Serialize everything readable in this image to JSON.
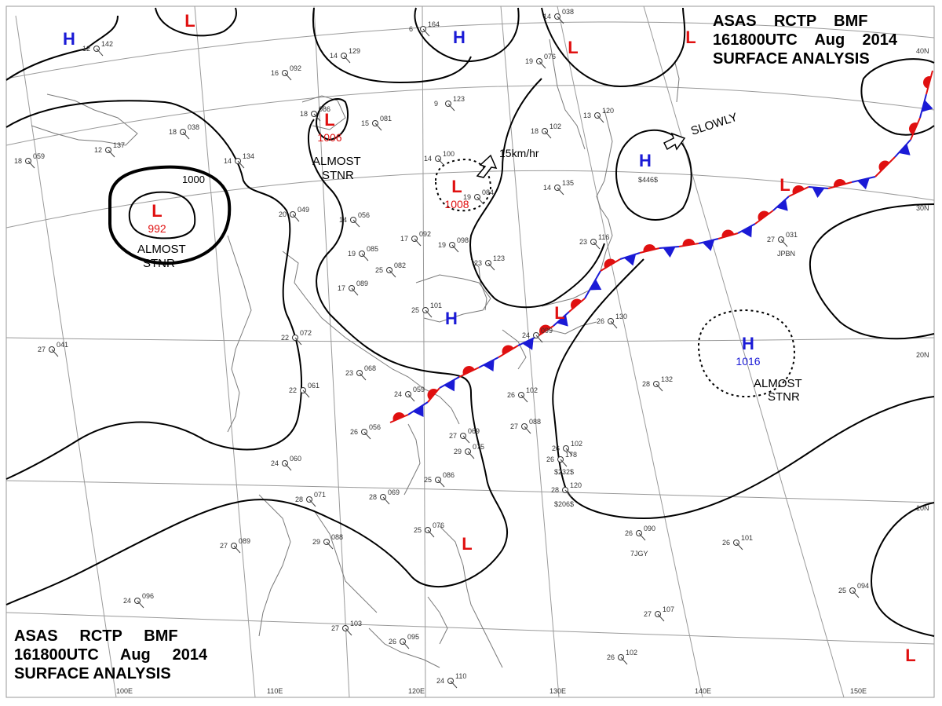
{
  "title": {
    "line1": [
      "ASAS",
      "RCTP",
      "BMF"
    ],
    "line2": [
      "161800UTC",
      "Aug",
      "2014"
    ],
    "line3": "SURFACE ANALYSIS"
  },
  "colors": {
    "high": "#1a1ad6",
    "low": "#e01010",
    "warm_front": "#e01010",
    "cold_front": "#1a1ad6",
    "isobar": "#000000",
    "grid": "#9a9a9a"
  },
  "centers": [
    {
      "type": "H",
      "pressure": ""
    },
    {
      "type": "L",
      "pressure": ""
    },
    {
      "type": "H",
      "pressure": ""
    },
    {
      "type": "L",
      "pressure": ""
    },
    {
      "type": "L",
      "pressure": "1006"
    },
    {
      "type": "L",
      "pressure": "992"
    },
    {
      "type": "L",
      "pressure": "1008"
    },
    {
      "type": "H",
      "pressure": ""
    },
    {
      "type": "L",
      "pressure": ""
    },
    {
      "type": "L",
      "pressure": ""
    },
    {
      "type": "L",
      "pressure": ""
    },
    {
      "type": "H",
      "pressure": ""
    },
    {
      "type": "H",
      "pressure": "1016"
    },
    {
      "type": "L",
      "pressure": ""
    },
    {
      "type": "L",
      "pressure": ""
    }
  ],
  "isobar_labels": [
    "1000"
  ],
  "annotations": {
    "almost_stnr_1": [
      "ALMOST",
      "STNR"
    ],
    "almost_stnr_2": [
      "ALMOST",
      "STNR"
    ],
    "almost_stnr_3": [
      "ALMOST",
      "STNR"
    ],
    "movement_1": "15km/hr",
    "movement_2": "SLOWLY"
  },
  "graticule": {
    "longitudes": [
      "100E",
      "110E",
      "120E",
      "130E",
      "140E",
      "150E"
    ],
    "latitudes": [
      "40N",
      "30N",
      "20N",
      "10N"
    ]
  },
  "stations": [
    {
      "temp": "12",
      "pres": "142"
    },
    {
      "temp": "16",
      "pres": "092"
    },
    {
      "temp": "18",
      "pres": "086"
    },
    {
      "temp": "18",
      "pres": "038"
    },
    {
      "temp": "15",
      "pres": "081"
    },
    {
      "temp": "14",
      "pres": "134"
    },
    {
      "temp": "14",
      "pres": "100"
    },
    {
      "temp": "20",
      "pres": "049"
    },
    {
      "temp": "17",
      "pres": "092"
    },
    {
      "temp": "19",
      "pres": "098"
    },
    {
      "temp": "25",
      "pres": "082"
    },
    {
      "temp": "23",
      "pres": "123"
    },
    {
      "temp": "17",
      "pres": "089"
    },
    {
      "temp": "22",
      "pres": "072"
    },
    {
      "temp": "23",
      "pres": "068"
    },
    {
      "temp": "24",
      "pres": "059"
    },
    {
      "temp": "26",
      "pres": "056"
    },
    {
      "temp": "27",
      "pres": "069"
    },
    {
      "temp": "29",
      "pres": "075"
    },
    {
      "temp": "25",
      "pres": "086"
    },
    {
      "temp": "28",
      "pres": "069"
    },
    {
      "temp": "28",
      "pres": "071"
    },
    {
      "temp": "24",
      "pres": "060"
    },
    {
      "temp": "22",
      "pres": "061"
    },
    {
      "temp": "27",
      "pres": "089"
    },
    {
      "temp": "29",
      "pres": "088"
    },
    {
      "temp": "25",
      "pres": "076"
    },
    {
      "temp": "27",
      "pres": "103"
    },
    {
      "temp": "26",
      "pres": "095"
    },
    {
      "temp": "24",
      "pres": "096"
    },
    {
      "temp": "26",
      "pres": "102"
    },
    {
      "temp": "27",
      "pres": "088"
    },
    {
      "temp": "26",
      "pres": "102"
    },
    {
      "temp": "28",
      "pres": "120"
    },
    {
      "temp": "26",
      "pres": "178"
    },
    {
      "temp": "26",
      "pres": "130"
    },
    {
      "temp": "28",
      "pres": "132"
    },
    {
      "temp": "26",
      "pres": "090"
    },
    {
      "temp": "26",
      "pres": "101"
    },
    {
      "temp": "25",
      "pres": "094"
    },
    {
      "temp": "27",
      "pres": "107"
    },
    {
      "temp": "26",
      "pres": "102"
    },
    {
      "temp": "24",
      "pres": "110"
    },
    {
      "temp": "27",
      "pres": "031"
    },
    {
      "temp": "18",
      "pres": "102"
    },
    {
      "temp": "14",
      "pres": "135"
    },
    {
      "temp": "14",
      "pres": "038"
    },
    {
      "temp": "19",
      "pres": "076"
    },
    {
      "temp": "9",
      "pres": "123"
    },
    {
      "temp": "6",
      "pres": "164"
    },
    {
      "temp": "14",
      "pres": "129"
    },
    {
      "temp": "18",
      "pres": "059"
    },
    {
      "temp": "12",
      "pres": "137"
    },
    {
      "temp": "27",
      "pres": "041"
    },
    {
      "temp": "25",
      "pres": "101"
    },
    {
      "temp": "23",
      "pres": "116"
    },
    {
      "temp": "24",
      "pres": "099"
    },
    {
      "temp": "19",
      "pres": "084"
    },
    {
      "temp": "14",
      "pres": "056"
    },
    {
      "temp": "19",
      "pres": "085"
    },
    {
      "temp": "13",
      "pres": "120"
    }
  ],
  "ship_callsigns": [
    "$446$",
    "$232$",
    "$206$",
    "7JGY",
    "JPBN"
  ]
}
